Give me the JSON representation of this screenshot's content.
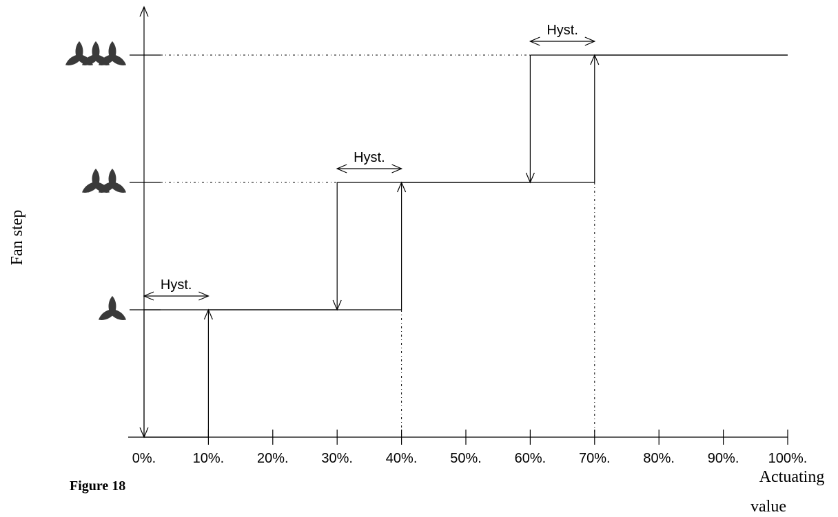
{
  "figure_caption": "Figure 18",
  "chart_data": {
    "type": "line",
    "xlabel": "Actuating value",
    "ylabel": "Fan step",
    "x_ticks": [
      "0%.",
      "10%.",
      "20%.",
      "30%.",
      "40%.",
      "50%.",
      "60%.",
      "70%.",
      "80%.",
      "90%.",
      "100%."
    ],
    "xlim": [
      0,
      100
    ],
    "ylim": [
      0,
      3
    ],
    "y_levels": [
      {
        "value": 1,
        "icon": "fan-1-icon",
        "fans": 1
      },
      {
        "value": 2,
        "icon": "fan-2-icon",
        "fans": 2
      },
      {
        "value": 3,
        "icon": "fan-3-icon",
        "fans": 3
      }
    ],
    "series": [
      {
        "direction": "increasing",
        "x": [
          0,
          10,
          10,
          40,
          40,
          70,
          70,
          100
        ],
        "y": [
          0,
          0,
          1,
          1,
          2,
          2,
          3,
          3
        ]
      },
      {
        "direction": "decreasing",
        "x": [
          100,
          60,
          60,
          30,
          30,
          0,
          0
        ],
        "y": [
          3,
          3,
          2,
          2,
          1,
          1,
          0
        ]
      }
    ],
    "hysteresis": [
      {
        "label": "Hyst.",
        "from": 0,
        "to": 10,
        "level": 1
      },
      {
        "label": "Hyst.",
        "from": 30,
        "to": 40,
        "level": 2
      },
      {
        "label": "Hyst.",
        "from": 60,
        "to": 70,
        "level": 3
      }
    ]
  }
}
